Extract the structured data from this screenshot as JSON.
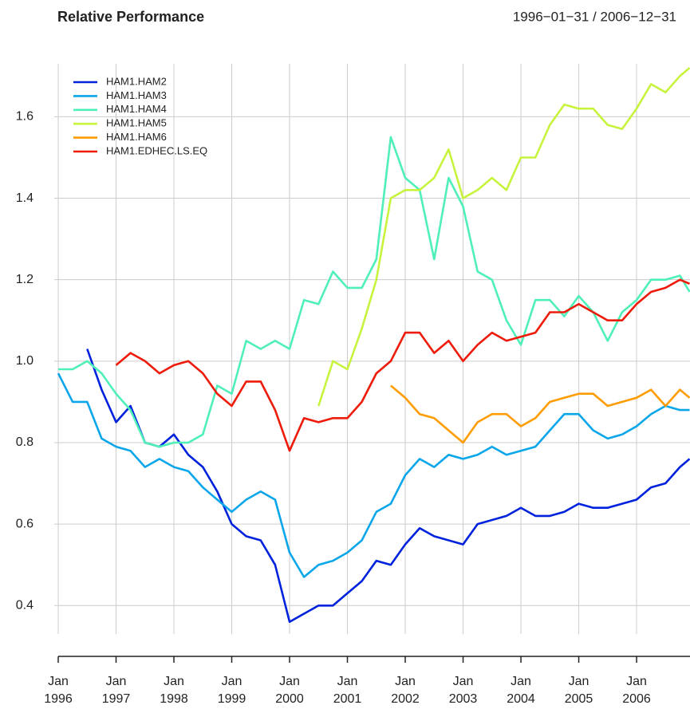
{
  "chart_data": {
    "type": "line",
    "title": "Relative Performance",
    "subtitle": "1996−01−31 / 2006−12−31",
    "x": [
      "1996-01",
      "1996-04",
      "1996-07",
      "1996-10",
      "1997-01",
      "1997-04",
      "1997-07",
      "1997-10",
      "1998-01",
      "1998-04",
      "1998-07",
      "1998-10",
      "1999-01",
      "1999-04",
      "1999-07",
      "1999-10",
      "2000-01",
      "2000-04",
      "2000-07",
      "2000-10",
      "2001-01",
      "2001-04",
      "2001-07",
      "2001-10",
      "2002-01",
      "2002-04",
      "2002-07",
      "2002-10",
      "2003-01",
      "2003-04",
      "2003-07",
      "2003-10",
      "2004-01",
      "2004-04",
      "2004-07",
      "2004-10",
      "2005-01",
      "2005-04",
      "2005-07",
      "2005-10",
      "2006-01",
      "2006-04",
      "2006-07",
      "2006-10",
      "2006-12"
    ],
    "series": [
      {
        "name": "HAM1.HAM2",
        "color": "#0022dd",
        "values": [
          null,
          null,
          1.03,
          0.93,
          0.85,
          0.89,
          0.8,
          0.79,
          0.82,
          0.77,
          0.74,
          0.68,
          0.6,
          0.57,
          0.56,
          0.5,
          0.36,
          0.38,
          0.4,
          0.4,
          0.43,
          0.46,
          0.51,
          0.5,
          0.55,
          0.59,
          0.57,
          0.56,
          0.55,
          0.6,
          0.61,
          0.62,
          0.64,
          0.62,
          0.62,
          0.63,
          0.65,
          0.64,
          0.64,
          0.65,
          0.66,
          0.69,
          0.7,
          0.74,
          0.76
        ]
      },
      {
        "name": "HAM1.HAM3",
        "color": "#0aa6ea",
        "values": [
          0.97,
          0.9,
          0.9,
          0.81,
          0.79,
          0.78,
          0.74,
          0.76,
          0.74,
          0.73,
          0.69,
          0.66,
          0.63,
          0.66,
          0.68,
          0.66,
          0.53,
          0.47,
          0.5,
          0.51,
          0.53,
          0.56,
          0.63,
          0.65,
          0.72,
          0.76,
          0.74,
          0.77,
          0.76,
          0.77,
          0.79,
          0.77,
          0.78,
          0.79,
          0.83,
          0.87,
          0.87,
          0.83,
          0.81,
          0.82,
          0.84,
          0.87,
          0.89,
          0.88,
          0.88
        ]
      },
      {
        "name": "HAM1.HAM4",
        "color": "#4ff0b8",
        "values": [
          0.98,
          0.98,
          1.0,
          0.97,
          0.92,
          0.88,
          0.8,
          0.79,
          0.8,
          0.8,
          0.82,
          0.94,
          0.92,
          1.05,
          1.03,
          1.05,
          1.03,
          1.15,
          1.14,
          1.22,
          1.18,
          1.18,
          1.25,
          1.55,
          1.45,
          1.42,
          1.25,
          1.45,
          1.38,
          1.22,
          1.2,
          1.1,
          1.04,
          1.15,
          1.15,
          1.11,
          1.16,
          1.12,
          1.05,
          1.12,
          1.15,
          1.2,
          1.2,
          1.21,
          1.17
        ]
      },
      {
        "name": "HAM1.HAM5",
        "color": "#c7f33d",
        "values": [
          null,
          null,
          null,
          null,
          null,
          null,
          null,
          null,
          null,
          null,
          null,
          null,
          null,
          null,
          null,
          null,
          null,
          null,
          0.89,
          1.0,
          0.98,
          1.08,
          1.2,
          1.4,
          1.42,
          1.42,
          1.45,
          1.52,
          1.4,
          1.42,
          1.45,
          1.42,
          1.5,
          1.5,
          1.58,
          1.63,
          1.62,
          1.62,
          1.58,
          1.57,
          1.62,
          1.68,
          1.66,
          1.7,
          1.72
        ]
      },
      {
        "name": "HAM1.HAM6",
        "color": "#ff9c00",
        "values": [
          null,
          null,
          null,
          null,
          null,
          null,
          null,
          null,
          null,
          null,
          null,
          null,
          null,
          null,
          null,
          null,
          null,
          null,
          null,
          null,
          null,
          null,
          null,
          0.94,
          0.91,
          0.87,
          0.86,
          0.83,
          0.8,
          0.85,
          0.87,
          0.87,
          0.84,
          0.86,
          0.9,
          0.91,
          0.92,
          0.92,
          0.89,
          0.9,
          0.91,
          0.93,
          0.89,
          0.93,
          0.91
        ]
      },
      {
        "name": "HAM1.EDHEC.LS.EQ",
        "color": "#ee1b0a",
        "values": [
          null,
          null,
          null,
          null,
          0.99,
          1.02,
          1.0,
          0.97,
          0.99,
          1.0,
          0.97,
          0.92,
          0.89,
          0.95,
          0.95,
          0.88,
          0.78,
          0.86,
          0.85,
          0.86,
          0.86,
          0.9,
          0.97,
          1.0,
          1.07,
          1.07,
          1.02,
          1.05,
          1.0,
          1.04,
          1.07,
          1.05,
          1.06,
          1.07,
          1.12,
          1.12,
          1.14,
          1.12,
          1.1,
          1.1,
          1.14,
          1.17,
          1.18,
          1.2,
          1.19
        ]
      }
    ],
    "xlim": [
      "1996-01",
      "2006-12"
    ],
    "xticks": [
      {
        "value": "1996-01",
        "label": "Jan 1996"
      },
      {
        "value": "1997-01",
        "label": "Jan 1997"
      },
      {
        "value": "1998-01",
        "label": "Jan 1998"
      },
      {
        "value": "1999-01",
        "label": "Jan 1999"
      },
      {
        "value": "2000-01",
        "label": "Jan 2000"
      },
      {
        "value": "2001-01",
        "label": "Jan 2001"
      },
      {
        "value": "2002-01",
        "label": "Jan 2002"
      },
      {
        "value": "2003-01",
        "label": "Jan 2003"
      },
      {
        "value": "2004-01",
        "label": "Jan 2004"
      },
      {
        "value": "2005-01",
        "label": "Jan 2005"
      },
      {
        "value": "2006-01",
        "label": "Jan 2006"
      }
    ],
    "ylim": [
      0.33,
      1.73
    ],
    "yticks": [
      {
        "value": 0.4,
        "label": "0.4"
      },
      {
        "value": 0.6,
        "label": "0.6"
      },
      {
        "value": 0.8,
        "label": "0.8"
      },
      {
        "value": 1.0,
        "label": "1.0"
      },
      {
        "value": 1.2,
        "label": "1.2"
      },
      {
        "value": 1.4,
        "label": "1.4"
      },
      {
        "value": 1.6,
        "label": "1.6"
      }
    ],
    "grid": true,
    "legend": "top-left"
  }
}
